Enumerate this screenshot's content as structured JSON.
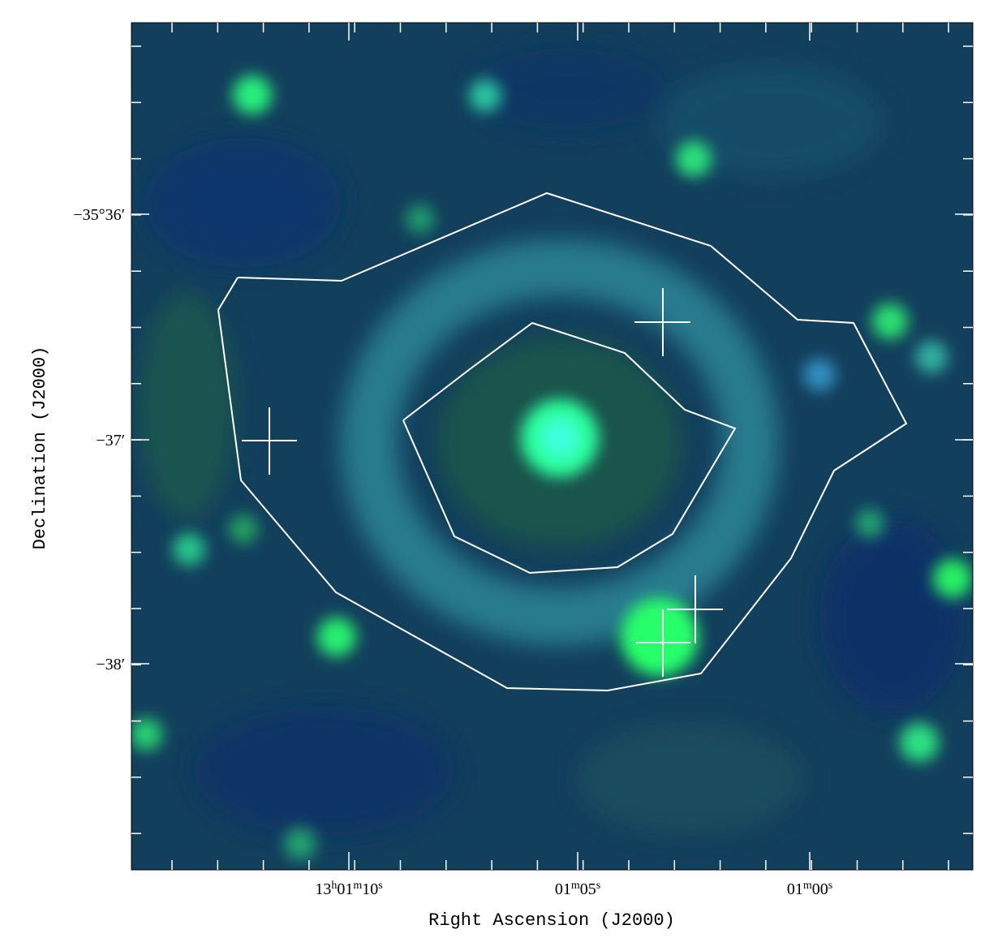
{
  "x_axis": {
    "label": "Right Ascension (J2000)",
    "ticks": [
      [
        "13",
        "h",
        "01",
        "m",
        "10",
        "s"
      ],
      [
        "01",
        "m",
        "05",
        "s"
      ],
      [
        "01",
        "m",
        "00",
        "s"
      ]
    ]
  },
  "y_axis": {
    "label": "Declination (J2000)",
    "ticks": [
      "−35°36′",
      "−37′",
      "−38′"
    ]
  }
}
